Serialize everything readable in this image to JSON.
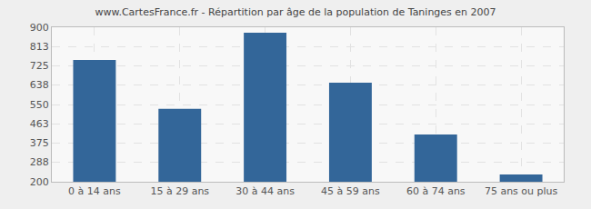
{
  "chart_data": {
    "type": "bar",
    "title": "www.CartesFrance.fr - Répartition par âge de la population de Taninges en 2007",
    "categories": [
      "0 à 14 ans",
      "15 à 29 ans",
      "30 à 44 ans",
      "45 à 59 ans",
      "60 à 74 ans",
      "75 ans ou plus"
    ],
    "values": [
      752,
      530,
      875,
      649,
      414,
      233
    ],
    "color": "#336699",
    "ylim": [
      200,
      900
    ],
    "yticks": [
      200,
      288,
      375,
      463,
      550,
      638,
      725,
      813,
      900
    ],
    "grid": true
  }
}
